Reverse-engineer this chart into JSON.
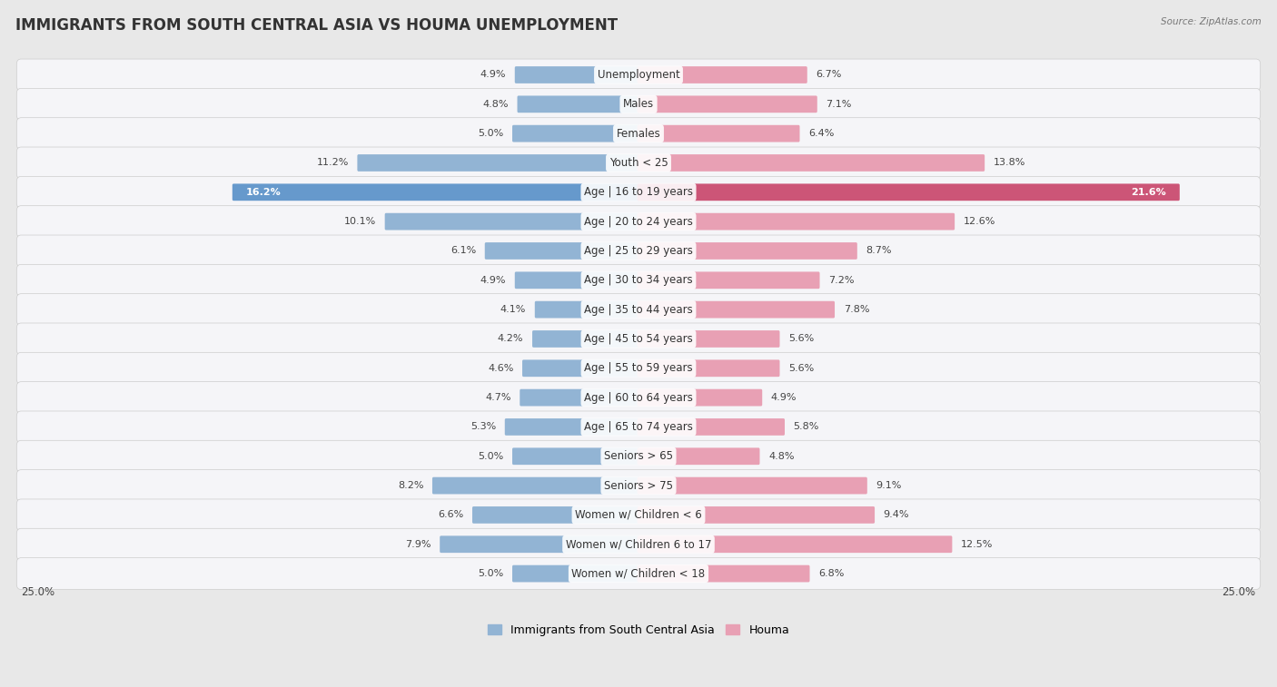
{
  "title": "IMMIGRANTS FROM SOUTH CENTRAL ASIA VS HOUMA UNEMPLOYMENT",
  "source": "Source: ZipAtlas.com",
  "categories": [
    "Unemployment",
    "Males",
    "Females",
    "Youth < 25",
    "Age | 16 to 19 years",
    "Age | 20 to 24 years",
    "Age | 25 to 29 years",
    "Age | 30 to 34 years",
    "Age | 35 to 44 years",
    "Age | 45 to 54 years",
    "Age | 55 to 59 years",
    "Age | 60 to 64 years",
    "Age | 65 to 74 years",
    "Seniors > 65",
    "Seniors > 75",
    "Women w/ Children < 6",
    "Women w/ Children 6 to 17",
    "Women w/ Children < 18"
  ],
  "left_values": [
    4.9,
    4.8,
    5.0,
    11.2,
    16.2,
    10.1,
    6.1,
    4.9,
    4.1,
    4.2,
    4.6,
    4.7,
    5.3,
    5.0,
    8.2,
    6.6,
    7.9,
    5.0
  ],
  "right_values": [
    6.7,
    7.1,
    6.4,
    13.8,
    21.6,
    12.6,
    8.7,
    7.2,
    7.8,
    5.6,
    5.6,
    4.9,
    5.8,
    4.8,
    9.1,
    9.4,
    12.5,
    6.8
  ],
  "left_color": "#92b4d4",
  "right_color": "#e8a0b4",
  "left_highlight_color": "#6699cc",
  "right_highlight_color": "#cc5577",
  "highlight_row": 4,
  "max_value": 25.0,
  "legend_left": "Immigrants from South Central Asia",
  "legend_right": "Houma",
  "bg_color": "#e8e8e8",
  "row_color": "#f5f5f8",
  "title_fontsize": 12,
  "label_fontsize": 8.5,
  "value_fontsize": 8.0
}
